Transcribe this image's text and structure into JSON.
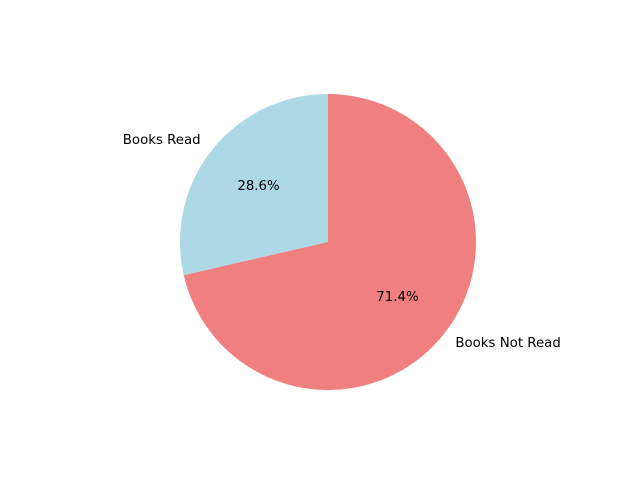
{
  "chart_data": {
    "type": "pie",
    "slices": [
      {
        "label": "Books Read",
        "value": 28.6,
        "pct_label": "28.6%",
        "color": "#add8e6"
      },
      {
        "label": "Books Not Read",
        "value": 71.4,
        "pct_label": "71.4%",
        "color": "#f08080"
      }
    ],
    "start_angle_deg": 90,
    "direction": "counterclockwise",
    "legend": "none"
  }
}
